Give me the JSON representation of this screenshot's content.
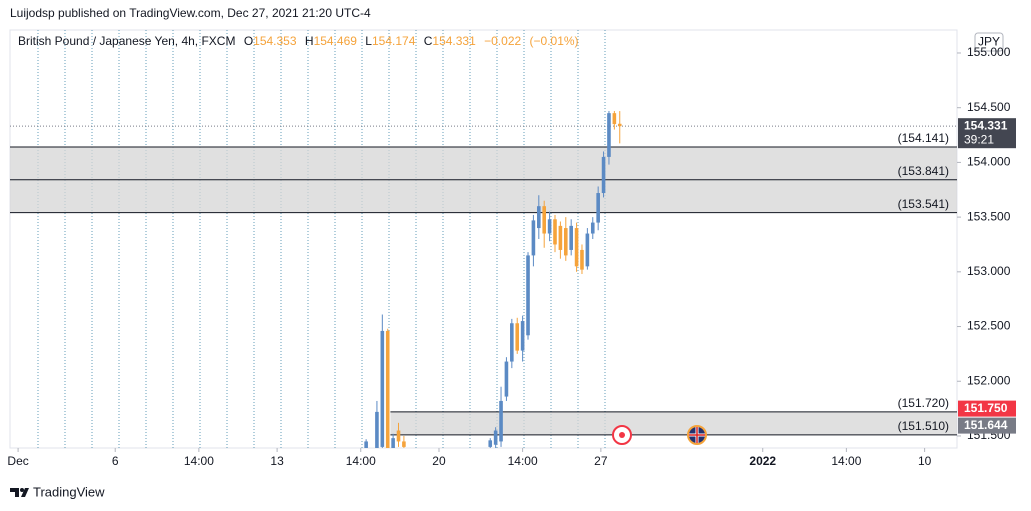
{
  "header": {
    "publisher": "Luijodsp published on TradingView.com, Dec 27, 2021 21:20 UTC-4"
  },
  "chart_data": {
    "type": "candlestick",
    "title": "British Pound / Japanese Yen, 4h, FXCM",
    "ohlc": [
      {
        "letter": "O",
        "value": 154.353
      },
      {
        "letter": "H",
        "value": 154.469
      },
      {
        "letter": "L",
        "value": 154.174
      },
      {
        "letter": "C",
        "value": 154.331
      }
    ],
    "change": "−0.022",
    "change_percent": "(−0.01%)",
    "currency": "JPY",
    "up_color": "#5b8ac4",
    "down_color": "#f5a33b",
    "x": [
      "2021-12-15T16:00",
      "2021-12-16T00:00",
      "2021-12-16T04:00",
      "2021-12-16T08:00",
      "2021-12-16T12:00",
      "2021-12-16T16:00",
      "2021-12-16T20:00",
      "2021-12-21T12:00",
      "2021-12-21T16:00",
      "2021-12-21T20:00",
      "2021-12-22T00:00",
      "2021-12-22T04:00",
      "2021-12-22T08:00",
      "2021-12-22T12:00",
      "2021-12-22T16:00",
      "2021-12-22T20:00",
      "2021-12-23T00:00",
      "2021-12-23T04:00",
      "2021-12-23T08:00",
      "2021-12-23T12:00",
      "2021-12-23T16:00",
      "2021-12-23T20:00",
      "2021-12-24T00:00",
      "2021-12-24T04:00",
      "2021-12-24T08:00",
      "2021-12-24T12:00",
      "2021-12-24T16:00",
      "2021-12-24T20:00",
      "2021-12-27T00:00",
      "2021-12-27T04:00",
      "2021-12-27T08:00",
      "2021-12-27T12:00"
    ],
    "open": [
      151.3,
      151.35,
      151.4,
      152.46,
      151.35,
      151.55,
      151.45,
      151.4,
      151.42,
      151.45,
      151.86,
      152.18,
      152.53,
      152.28,
      152.42,
      153.15,
      153.4,
      153.6,
      153.35,
      153.48,
      153.42,
      153.4,
      153.2,
      153.4,
      153.2,
      153.05,
      153.35,
      153.45,
      153.72,
      154.05,
      154.45,
      154.353
    ],
    "high": [
      151.47,
      151.82,
      152.61,
      152.48,
      151.52,
      151.62,
      151.5,
      151.48,
      151.58,
      151.95,
      152.22,
      152.57,
      152.58,
      152.6,
      153.18,
      153.52,
      153.7,
      153.65,
      153.55,
      153.52,
      153.46,
      153.5,
      153.48,
      153.45,
      153.25,
      153.4,
      153.5,
      153.78,
      154.1,
      154.47,
      154.47,
      154.469
    ],
    "low": [
      151.25,
      151.2,
      151.3,
      151.2,
      151.3,
      151.4,
      151.35,
      151.35,
      151.36,
      151.4,
      151.82,
      152.12,
      152.25,
      152.18,
      152.38,
      153.05,
      153.3,
      153.22,
      153.28,
      153.18,
      153.12,
      153.1,
      153.15,
      153.0,
      152.98,
      153.02,
      153.3,
      153.38,
      153.68,
      153.98,
      154.3,
      154.174
    ],
    "close": [
      151.45,
      151.72,
      152.46,
      151.3,
      151.48,
      151.45,
      151.4,
      151.46,
      151.55,
      151.82,
      152.18,
      152.53,
      152.28,
      152.55,
      153.15,
      153.47,
      153.6,
      153.35,
      153.48,
      153.25,
      153.2,
      153.15,
      153.42,
      153.05,
      153.02,
      153.35,
      153.45,
      153.72,
      154.05,
      154.45,
      154.35,
      154.331
    ],
    "xlim": [
      "2021-11-30T18:00",
      "2022-01-11"
    ],
    "xticks": [
      {
        "value": "2021-12-01",
        "label": "Dec"
      },
      {
        "value": "2021-12-06",
        "label": "6"
      },
      {
        "value": "2021-12-08T14:00",
        "label": "14:00"
      },
      {
        "value": "2021-12-13",
        "label": "13"
      },
      {
        "value": "2021-12-15T14:00",
        "label": "14:00"
      },
      {
        "value": "2021-12-20",
        "label": "20"
      },
      {
        "value": "2021-12-22T14:00",
        "label": "14:00"
      },
      {
        "value": "2021-12-27",
        "label": "27"
      },
      {
        "value": "2022-01-01",
        "label": "2022",
        "bold": true
      },
      {
        "value": "2022-01-05T14:00",
        "label": "14:00"
      },
      {
        "value": "2022-01-10",
        "label": "10"
      }
    ],
    "ylim": [
      151.39,
      155.21
    ],
    "yticks": [
      {
        "value": 151.5,
        "label": "151.500"
      },
      {
        "value": 152,
        "label": "152.000"
      },
      {
        "value": 152.5,
        "label": "152.500"
      },
      {
        "value": 153,
        "label": "153.000"
      },
      {
        "value": 153.5,
        "label": "153.500"
      },
      {
        "value": 154,
        "label": "154.000"
      },
      {
        "value": 154.5,
        "label": "154.500"
      },
      {
        "value": 155,
        "label": "155.000"
      }
    ],
    "zones": [
      {
        "levels": [
          {
            "value": 154.141,
            "label": "(154.141)"
          },
          {
            "value": 153.841,
            "label": "(153.841)"
          },
          {
            "value": 153.541,
            "label": "(153.541)"
          }
        ]
      },
      {
        "start": "2021-12-16T12:00",
        "levels": [
          {
            "value": 151.72,
            "label": "(151.720)"
          },
          {
            "value": 151.51,
            "label": "(151.510)"
          }
        ]
      }
    ],
    "price_labels": [
      {
        "value": 154.331,
        "label": "154.331",
        "countdown": "39:21",
        "color": "#434651"
      },
      {
        "value": 151.75,
        "label": "151.750",
        "color": "#f23645"
      },
      {
        "value": 151.644,
        "label": "151.644",
        "color": "#787b86"
      }
    ]
  },
  "footer": {
    "brand": "TradingView"
  }
}
